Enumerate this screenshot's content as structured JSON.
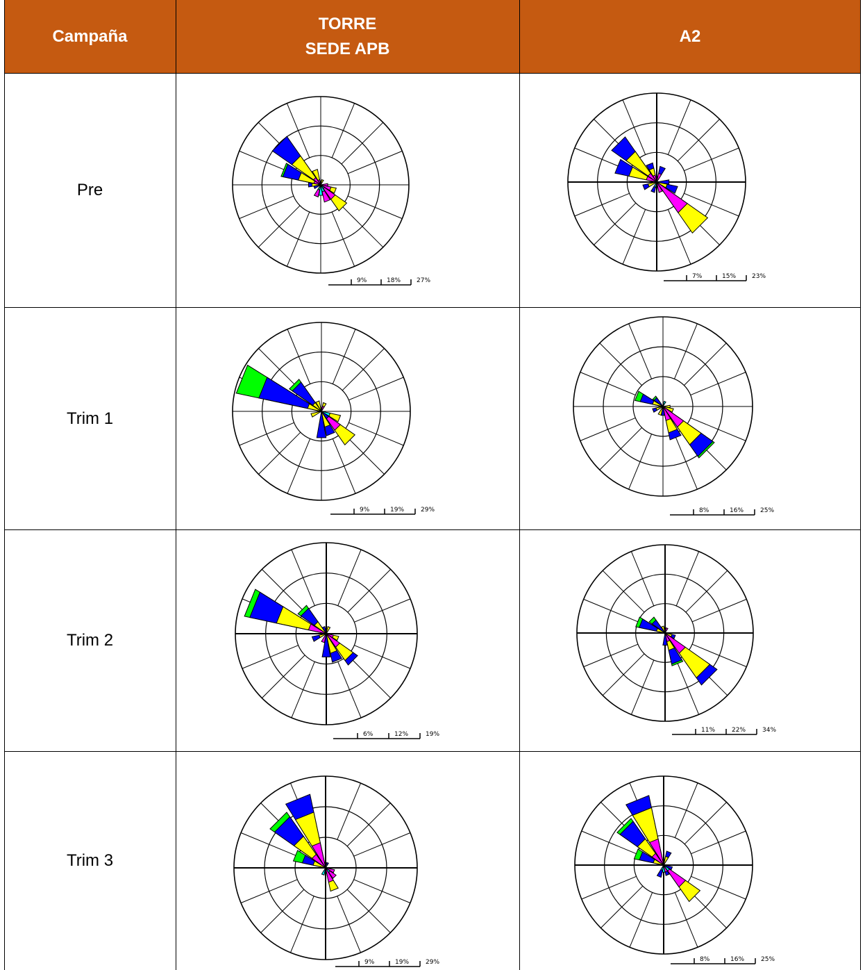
{
  "header": {
    "campaign": "Campaña",
    "station1": [
      "TORRE",
      "SEDE APB"
    ],
    "station2": "A2"
  },
  "rows": [
    {
      "label": "Pre",
      "scales": [
        [
          "9%",
          "18%",
          "27%"
        ],
        [
          "7%",
          "15%",
          "23%"
        ]
      ]
    },
    {
      "label": "Trim 1",
      "scales": [
        [
          "9%",
          "19%",
          "29%"
        ],
        [
          "8%",
          "16%",
          "25%"
        ]
      ]
    },
    {
      "label": "Trim 2",
      "scales": [
        [
          "6%",
          "12%",
          "19%"
        ],
        [
          "11%",
          "22%",
          "34%"
        ]
      ]
    },
    {
      "label": "Trim 3",
      "scales": [
        [
          "9%",
          "19%",
          "29%"
        ],
        [
          "8%",
          "16%",
          "25%"
        ]
      ]
    }
  ],
  "colors": {
    "header": "#c55a11",
    "blue": "#0000ff",
    "yellow": "#ffff00",
    "magenta": "#ff00ff",
    "cyan": "#00ffff",
    "green": "#00ff00"
  },
  "roses": [
    [
      {
        "dir": 315,
        "segs": [
          {
            "c": "blue",
            "r": 0.67
          },
          {
            "c": "yellow",
            "r": 0.4
          },
          {
            "c": "magenta",
            "r": 0.1
          }
        ]
      },
      {
        "dir": 292,
        "segs": [
          {
            "c": "green",
            "r": 0.46
          },
          {
            "c": "blue",
            "r": 0.44
          },
          {
            "c": "yellow",
            "r": 0.26
          },
          {
            "c": "magenta",
            "r": 0.08
          }
        ]
      },
      {
        "dir": 338,
        "segs": [
          {
            "c": "yellow",
            "r": 0.18
          },
          {
            "c": "magenta",
            "r": 0.06
          }
        ]
      },
      {
        "dir": 270,
        "segs": [
          {
            "c": "blue",
            "r": 0.14
          },
          {
            "c": "yellow",
            "r": 0.1
          }
        ]
      },
      {
        "dir": 135,
        "segs": [
          {
            "c": "yellow",
            "r": 0.36
          },
          {
            "c": "magenta",
            "r": 0.2
          },
          {
            "c": "cyan",
            "r": 0.05
          }
        ]
      },
      {
        "dir": 112,
        "segs": [
          {
            "c": "yellow",
            "r": 0.18
          },
          {
            "c": "magenta",
            "r": 0.12
          }
        ]
      },
      {
        "dir": 158,
        "segs": [
          {
            "c": "magenta",
            "r": 0.2
          },
          {
            "c": "cyan",
            "r": 0.08
          }
        ]
      },
      {
        "dir": 202,
        "segs": [
          {
            "c": "magenta",
            "r": 0.14
          },
          {
            "c": "cyan",
            "r": 0.06
          }
        ]
      },
      {
        "dir": 180,
        "segs": [
          {
            "c": "cyan",
            "r": 0.12
          }
        ]
      },
      {
        "dir": 22,
        "segs": [
          {
            "c": "yellow",
            "r": 0.06
          }
        ]
      },
      {
        "dir": 90,
        "segs": [
          {
            "c": "magenta",
            "r": 0.08
          }
        ]
      },
      {
        "dir": 248,
        "segs": [
          {
            "c": "blue",
            "r": 0.08
          }
        ]
      }
    ],
    [
      {
        "dir": 315,
        "segs": [
          {
            "c": "blue",
            "r": 0.62
          },
          {
            "c": "yellow",
            "r": 0.42
          },
          {
            "c": "magenta",
            "r": 0.12
          }
        ]
      },
      {
        "dir": 135,
        "segs": [
          {
            "c": "yellow",
            "r": 0.7
          },
          {
            "c": "magenta",
            "r": 0.42
          }
        ]
      },
      {
        "dir": 292,
        "segs": [
          {
            "c": "blue",
            "r": 0.48
          },
          {
            "c": "yellow",
            "r": 0.32
          },
          {
            "c": "magenta",
            "r": 0.12
          }
        ]
      },
      {
        "dir": 338,
        "segs": [
          {
            "c": "blue",
            "r": 0.22
          },
          {
            "c": "yellow",
            "r": 0.16
          },
          {
            "c": "magenta",
            "r": 0.08
          }
        ]
      },
      {
        "dir": 22,
        "segs": [
          {
            "c": "blue",
            "r": 0.18
          },
          {
            "c": "magenta",
            "r": 0.1
          }
        ]
      },
      {
        "dir": 112,
        "segs": [
          {
            "c": "blue",
            "r": 0.24
          },
          {
            "c": "yellow",
            "r": 0.12
          }
        ]
      },
      {
        "dir": 248,
        "segs": [
          {
            "c": "blue",
            "r": 0.16
          },
          {
            "c": "yellow",
            "r": 0.1
          }
        ]
      },
      {
        "dir": 90,
        "segs": [
          {
            "c": "blue",
            "r": 0.14
          }
        ]
      },
      {
        "dir": 202,
        "segs": [
          {
            "c": "blue",
            "r": 0.12
          },
          {
            "c": "cyan",
            "r": 0.06
          }
        ]
      },
      {
        "dir": 158,
        "segs": [
          {
            "c": "magenta",
            "r": 0.12
          }
        ]
      }
    ],
    [
      {
        "dir": 292,
        "segs": [
          {
            "c": "green",
            "r": 0.98
          },
          {
            "c": "blue",
            "r": 0.72
          },
          {
            "c": "yellow",
            "r": 0.16
          }
        ]
      },
      {
        "dir": 315,
        "segs": [
          {
            "c": "green",
            "r": 0.44
          },
          {
            "c": "blue",
            "r": 0.4
          },
          {
            "c": "yellow",
            "r": 0.12
          }
        ]
      },
      {
        "dir": 135,
        "segs": [
          {
            "c": "yellow",
            "r": 0.46
          },
          {
            "c": "magenta",
            "r": 0.26
          },
          {
            "c": "blue",
            "r": 0.1
          }
        ]
      },
      {
        "dir": 158,
        "segs": [
          {
            "c": "blue",
            "r": 0.28
          },
          {
            "c": "yellow",
            "r": 0.18
          }
        ]
      },
      {
        "dir": 112,
        "segs": [
          {
            "c": "yellow",
            "r": 0.22
          },
          {
            "c": "cyan",
            "r": 0.1
          }
        ]
      },
      {
        "dir": 180,
        "segs": [
          {
            "c": "blue",
            "r": 0.3
          }
        ]
      },
      {
        "dir": 248,
        "segs": [
          {
            "c": "yellow",
            "r": 0.12
          }
        ]
      },
      {
        "dir": 22,
        "segs": [
          {
            "c": "yellow",
            "r": 0.1
          },
          {
            "c": "magenta",
            "r": 0.06
          }
        ]
      },
      {
        "dir": 338,
        "segs": [
          {
            "c": "yellow",
            "r": 0.12
          }
        ]
      }
    ],
    [
      {
        "dir": 135,
        "segs": [
          {
            "c": "green",
            "r": 0.7
          },
          {
            "c": "blue",
            "r": 0.68
          },
          {
            "c": "yellow",
            "r": 0.52
          },
          {
            "c": "magenta",
            "r": 0.28
          }
        ]
      },
      {
        "dir": 158,
        "segs": [
          {
            "c": "blue",
            "r": 0.38
          },
          {
            "c": "yellow",
            "r": 0.3
          },
          {
            "c": "magenta",
            "r": 0.16
          }
        ]
      },
      {
        "dir": 292,
        "segs": [
          {
            "c": "green",
            "r": 0.32
          },
          {
            "c": "blue",
            "r": 0.26
          },
          {
            "c": "yellow",
            "r": 0.12
          }
        ]
      },
      {
        "dir": 315,
        "segs": [
          {
            "c": "green",
            "r": 0.14
          },
          {
            "c": "blue",
            "r": 0.12
          }
        ]
      },
      {
        "dir": 112,
        "segs": [
          {
            "c": "yellow",
            "r": 0.12
          }
        ]
      },
      {
        "dir": 90,
        "segs": [
          {
            "c": "yellow",
            "r": 0.08
          }
        ]
      },
      {
        "dir": 180,
        "segs": [
          {
            "c": "blue",
            "r": 0.1
          }
        ]
      },
      {
        "dir": 248,
        "segs": [
          {
            "c": "blue",
            "r": 0.12
          },
          {
            "c": "yellow",
            "r": 0.08
          }
        ]
      },
      {
        "dir": 22,
        "segs": [
          {
            "c": "cyan",
            "r": 0.06
          }
        ]
      },
      {
        "dir": 202,
        "segs": [
          {
            "c": "yellow",
            "r": 0.1
          }
        ]
      }
    ],
    [
      {
        "dir": 292,
        "segs": [
          {
            "c": "green",
            "r": 0.92
          },
          {
            "c": "blue",
            "r": 0.86
          },
          {
            "c": "yellow",
            "r": 0.56
          },
          {
            "c": "magenta",
            "r": 0.2
          }
        ]
      },
      {
        "dir": 135,
        "segs": [
          {
            "c": "blue",
            "r": 0.42
          },
          {
            "c": "yellow",
            "r": 0.36
          },
          {
            "c": "magenta",
            "r": 0.18
          }
        ]
      },
      {
        "dir": 158,
        "segs": [
          {
            "c": "blue",
            "r": 0.32
          },
          {
            "c": "yellow",
            "r": 0.22
          }
        ]
      },
      {
        "dir": 315,
        "segs": [
          {
            "c": "green",
            "r": 0.38
          },
          {
            "c": "blue",
            "r": 0.34
          },
          {
            "c": "yellow",
            "r": 0.16
          }
        ]
      },
      {
        "dir": 112,
        "segs": [
          {
            "c": "yellow",
            "r": 0.14
          },
          {
            "c": "magenta",
            "r": 0.08
          }
        ]
      },
      {
        "dir": 180,
        "segs": [
          {
            "c": "blue",
            "r": 0.26
          }
        ]
      },
      {
        "dir": 248,
        "segs": [
          {
            "c": "blue",
            "r": 0.16
          },
          {
            "c": "yellow",
            "r": 0.08
          }
        ]
      },
      {
        "dir": 202,
        "segs": [
          {
            "c": "magenta",
            "r": 0.1
          }
        ]
      },
      {
        "dir": 22,
        "segs": [
          {
            "c": "yellow",
            "r": 0.08
          }
        ]
      },
      {
        "dir": 338,
        "segs": [
          {
            "c": "blue",
            "r": 0.08
          }
        ]
      }
    ],
    [
      {
        "dir": 135,
        "segs": [
          {
            "c": "blue",
            "r": 0.72
          },
          {
            "c": "yellow",
            "r": 0.62
          },
          {
            "c": "magenta",
            "r": 0.28
          }
        ]
      },
      {
        "dir": 292,
        "segs": [
          {
            "c": "green",
            "r": 0.34
          },
          {
            "c": "blue",
            "r": 0.3
          },
          {
            "c": "yellow",
            "r": 0.1
          }
        ]
      },
      {
        "dir": 158,
        "segs": [
          {
            "c": "green",
            "r": 0.38
          },
          {
            "c": "blue",
            "r": 0.36
          },
          {
            "c": "yellow",
            "r": 0.2
          },
          {
            "c": "magenta",
            "r": 0.1
          }
        ]
      },
      {
        "dir": 315,
        "segs": [
          {
            "c": "green",
            "r": 0.22
          },
          {
            "c": "blue",
            "r": 0.18
          }
        ]
      },
      {
        "dir": 180,
        "segs": [
          {
            "c": "blue",
            "r": 0.14
          }
        ]
      },
      {
        "dir": 112,
        "segs": [
          {
            "c": "blue",
            "r": 0.12
          },
          {
            "c": "yellow",
            "r": 0.08
          }
        ]
      },
      {
        "dir": 338,
        "segs": [
          {
            "c": "yellow",
            "r": 0.08
          }
        ]
      },
      {
        "dir": 22,
        "segs": [
          {
            "c": "magenta",
            "r": 0.06
          }
        ]
      }
    ],
    [
      {
        "dir": 338,
        "segs": [
          {
            "c": "blue",
            "r": 0.82
          },
          {
            "c": "yellow",
            "r": 0.62
          },
          {
            "c": "magenta",
            "r": 0.28
          }
        ]
      },
      {
        "dir": 315,
        "segs": [
          {
            "c": "green",
            "r": 0.74
          },
          {
            "c": "blue",
            "r": 0.68
          },
          {
            "c": "yellow",
            "r": 0.42
          },
          {
            "c": "magenta",
            "r": 0.18
          }
        ]
      },
      {
        "dir": 292,
        "segs": [
          {
            "c": "green",
            "r": 0.36
          },
          {
            "c": "blue",
            "r": 0.26
          },
          {
            "c": "yellow",
            "r": 0.14
          }
        ]
      },
      {
        "dir": 158,
        "segs": [
          {
            "c": "yellow",
            "r": 0.26
          },
          {
            "c": "magenta",
            "r": 0.16
          }
        ]
      },
      {
        "dir": 135,
        "segs": [
          {
            "c": "magenta",
            "r": 0.14
          },
          {
            "c": "cyan",
            "r": 0.06
          }
        ]
      },
      {
        "dir": 112,
        "segs": [
          {
            "c": "magenta",
            "r": 0.1
          }
        ]
      },
      {
        "dir": 22,
        "segs": [
          {
            "c": "blue",
            "r": 0.06
          },
          {
            "c": "cyan",
            "r": 0.04
          }
        ]
      },
      {
        "dir": 202,
        "segs": [
          {
            "c": "cyan",
            "r": 0.08
          }
        ]
      }
    ],
    [
      {
        "dir": 338,
        "segs": [
          {
            "c": "blue",
            "r": 0.8
          },
          {
            "c": "yellow",
            "r": 0.66
          },
          {
            "c": "magenta",
            "r": 0.3
          }
        ]
      },
      {
        "dir": 315,
        "segs": [
          {
            "c": "green",
            "r": 0.64
          },
          {
            "c": "blue",
            "r": 0.6
          },
          {
            "c": "yellow",
            "r": 0.36
          },
          {
            "c": "magenta",
            "r": 0.16
          }
        ]
      },
      {
        "dir": 135,
        "segs": [
          {
            "c": "yellow",
            "r": 0.5
          },
          {
            "c": "magenta",
            "r": 0.3
          },
          {
            "c": "cyan",
            "r": 0.08
          }
        ]
      },
      {
        "dir": 292,
        "segs": [
          {
            "c": "green",
            "r": 0.34
          },
          {
            "c": "blue",
            "r": 0.28
          },
          {
            "c": "yellow",
            "r": 0.12
          }
        ]
      },
      {
        "dir": 158,
        "segs": [
          {
            "c": "blue",
            "r": 0.12
          },
          {
            "c": "magenta",
            "r": 0.08
          }
        ]
      },
      {
        "dir": 22,
        "segs": [
          {
            "c": "blue",
            "r": 0.16
          },
          {
            "c": "yellow",
            "r": 0.1
          }
        ]
      },
      {
        "dir": 112,
        "segs": [
          {
            "c": "blue",
            "r": 0.1
          }
        ]
      },
      {
        "dir": 202,
        "segs": [
          {
            "c": "blue",
            "r": 0.14
          },
          {
            "c": "cyan",
            "r": 0.06
          }
        ]
      },
      {
        "dir": 180,
        "segs": [
          {
            "c": "cyan",
            "r": 0.08
          }
        ]
      }
    ]
  ]
}
